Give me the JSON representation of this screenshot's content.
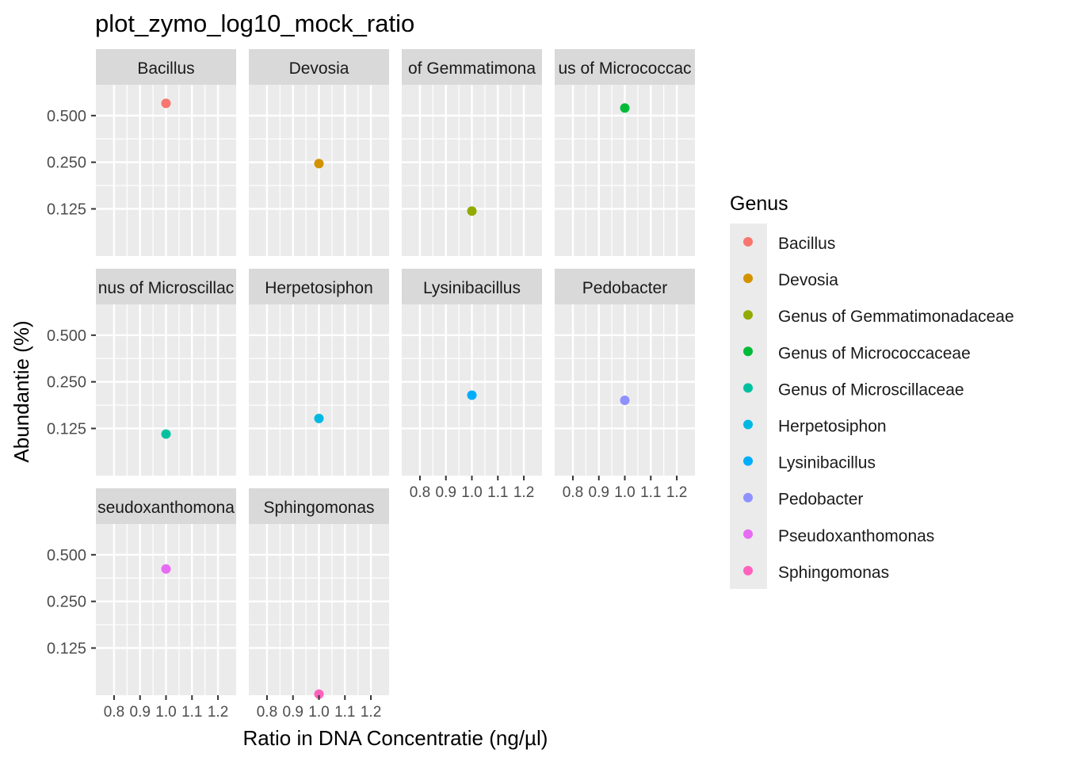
{
  "chart_data": {
    "type": "scatter",
    "title": "plot_zymo_log10_mock_ratio",
    "xlabel": "Ratio in DNA Concentratie (ng/µl)",
    "ylabel": "Abundantie (%)",
    "facet_by": "Genus",
    "x_scale": "linear",
    "y_scale": "log10",
    "xlim": [
      0.73,
      1.27
    ],
    "ylim": [
      0.062,
      0.79
    ],
    "x_ticks": [
      0.8,
      0.9,
      1.0,
      1.1,
      1.2
    ],
    "x_tick_labels": [
      "0.8",
      "0.9",
      "1.0",
      "1.1",
      "1.2"
    ],
    "y_ticks": [
      0.125,
      0.25,
      0.5
    ],
    "y_tick_labels": [
      "0.125",
      "0.250",
      "0.500"
    ],
    "grid": true,
    "facet_strips": [
      "Bacillus",
      "Devosia",
      "of Gemmatimona",
      "us of Micrococcac",
      "nus of Microscillac",
      "Herpetosiphon",
      "Lysinibacillus",
      "Pedobacter",
      "seudoxanthomona",
      "Sphingomonas"
    ],
    "series": [
      {
        "name": "Bacillus",
        "color": "#F8766D",
        "x": [
          1.0
        ],
        "y": [
          0.6
        ]
      },
      {
        "name": "Devosia",
        "color": "#D39200",
        "x": [
          1.0
        ],
        "y": [
          0.245
        ]
      },
      {
        "name": "Genus of Gemmatimonadaceae",
        "color": "#93AA00",
        "x": [
          1.0
        ],
        "y": [
          0.121
        ]
      },
      {
        "name": "Genus of Micrococcaceae",
        "color": "#00BA38",
        "x": [
          1.0
        ],
        "y": [
          0.56
        ]
      },
      {
        "name": "Genus of Microscillaceae",
        "color": "#00C19F",
        "x": [
          1.0
        ],
        "y": [
          0.115
        ]
      },
      {
        "name": "Herpetosiphon",
        "color": "#00B9E3",
        "x": [
          1.0
        ],
        "y": [
          0.145
        ]
      },
      {
        "name": "Lysinibacillus",
        "color": "#00ADFA",
        "x": [
          1.0
        ],
        "y": [
          0.205
        ]
      },
      {
        "name": "Pedobacter",
        "color": "#8F91FF",
        "x": [
          1.0
        ],
        "y": [
          0.19
        ]
      },
      {
        "name": "Pseudoxanthomonas",
        "color": "#E76BF3",
        "x": [
          1.0
        ],
        "y": [
          0.405
        ]
      },
      {
        "name": "Sphingomonas",
        "color": "#FF62BC",
        "x": [
          1.0
        ],
        "y": [
          0.063
        ]
      }
    ],
    "legend": {
      "title": "Genus",
      "position": "right"
    }
  }
}
